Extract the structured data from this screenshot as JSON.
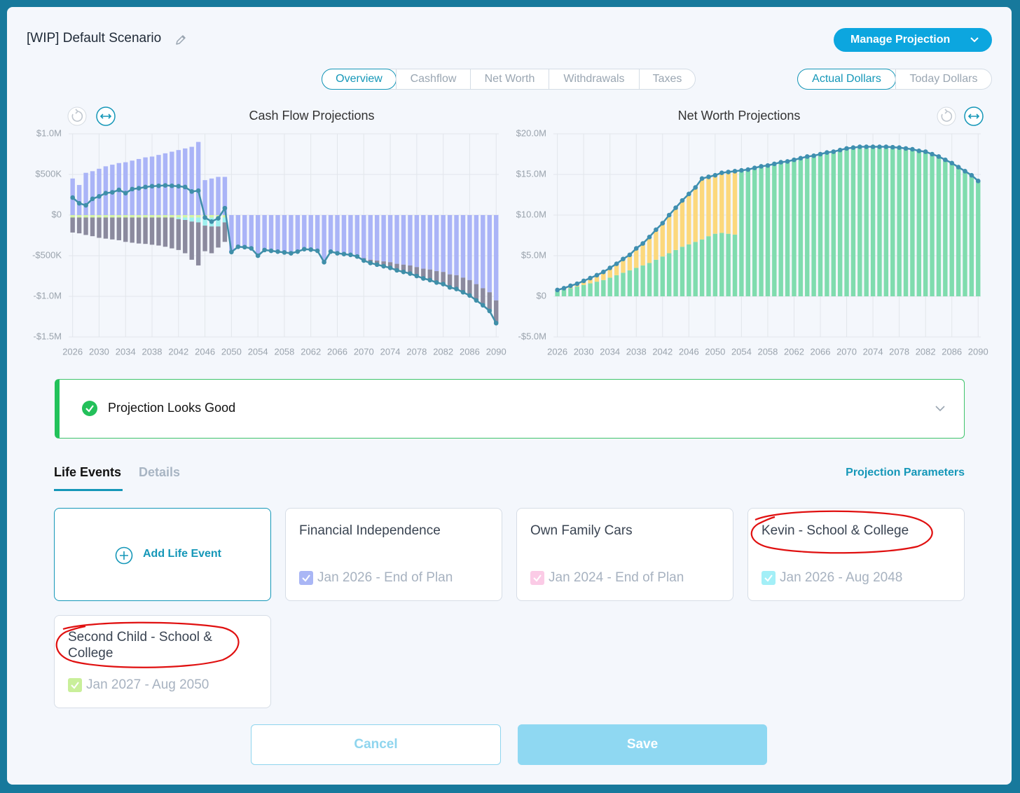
{
  "header": {
    "title": "[WIP] Default Scenario",
    "button": "Manage Projection"
  },
  "view_tabs": [
    "Overview",
    "Cashflow",
    "Net Worth",
    "Withdrawals",
    "Taxes"
  ],
  "dollar_toggle": [
    "Actual Dollars",
    "Today Dollars"
  ],
  "chart_data": [
    {
      "type": "bar",
      "stacked": true,
      "title": "Cash Flow Projections",
      "x": [
        2026,
        2027,
        2028,
        2029,
        2030,
        2031,
        2032,
        2033,
        2034,
        2035,
        2036,
        2037,
        2038,
        2039,
        2040,
        2041,
        2042,
        2043,
        2044,
        2045,
        2046,
        2047,
        2048,
        2049,
        2050,
        2051,
        2052,
        2053,
        2054,
        2055,
        2056,
        2057,
        2058,
        2059,
        2060,
        2061,
        2062,
        2063,
        2064,
        2065,
        2066,
        2067,
        2068,
        2069,
        2070,
        2071,
        2072,
        2073,
        2074,
        2075,
        2076,
        2077,
        2078,
        2079,
        2080,
        2081,
        2082,
        2083,
        2084,
        2085,
        2086,
        2087,
        2088,
        2089,
        2090
      ],
      "xlim": [
        2025.4,
        2090.4
      ],
      "xticks": [
        2026,
        2030,
        2034,
        2038,
        2042,
        2046,
        2050,
        2054,
        2058,
        2062,
        2066,
        2070,
        2074,
        2078,
        2082,
        2086,
        2090
      ],
      "ylim": [
        -1500000,
        1000000
      ],
      "yticks": [
        {
          "value": 1000000,
          "label": "$1.0M"
        },
        {
          "value": 500000,
          "label": "$500K"
        },
        {
          "value": 0,
          "label": "$0"
        },
        {
          "value": -500000,
          "label": "-$500K"
        },
        {
          "value": -1000000,
          "label": "-$1.0M"
        },
        {
          "value": -1500000,
          "label": "-$1.5M"
        }
      ],
      "grid": true,
      "series": [
        {
          "type": "bar",
          "color": "#aab4f7",
          "values": [
            450000,
            370000,
            520000,
            540000,
            570000,
            600000,
            620000,
            640000,
            650000,
            670000,
            690000,
            710000,
            720000,
            740000,
            760000,
            780000,
            800000,
            820000,
            840000,
            900000,
            430000,
            450000,
            470000,
            470000,
            -455000,
            -390000,
            -395000,
            -410000,
            -500000,
            -430000,
            -440000,
            -450000,
            -460000,
            -470000,
            -450000,
            -420000,
            -425000,
            -440000,
            -580000,
            -450000,
            -470000,
            -480000,
            -480000,
            -490000,
            -530000,
            -550000,
            -560000,
            -570000,
            -580000,
            -600000,
            -610000,
            -620000,
            -640000,
            -660000,
            -670000,
            -690000,
            -700000,
            -730000,
            -740000,
            -770000,
            -800000,
            -850000,
            -900000,
            -950000,
            -1050000
          ]
        },
        {
          "type": "bar",
          "color": "#d3f3a4",
          "values": [
            -30000,
            -30000,
            -30000,
            -30000,
            -30000,
            -30000,
            -30000,
            -30000,
            -30000,
            -30000,
            -30000,
            -30000,
            -30000,
            -30000,
            -30000,
            -30000,
            -30000,
            -30000,
            -30000,
            -30000,
            -30000,
            -30000,
            -30000,
            -30000,
            null,
            null,
            null,
            null,
            null,
            null,
            null,
            null,
            null,
            null,
            null,
            null,
            null,
            null,
            null,
            null,
            null,
            null,
            null,
            null,
            null,
            null,
            null,
            null,
            null,
            null,
            null,
            null,
            null,
            null,
            null,
            null,
            null,
            null,
            null,
            null,
            null,
            null,
            null,
            null,
            null
          ]
        },
        {
          "type": "bar",
          "color": "#9ef0ef",
          "values": [
            null,
            null,
            null,
            null,
            null,
            null,
            null,
            null,
            null,
            null,
            null,
            null,
            null,
            null,
            null,
            null,
            -20000,
            -30000,
            -50000,
            -60000,
            -100000,
            -110000,
            -110000,
            -60000,
            null,
            null,
            null,
            null,
            null,
            null,
            null,
            null,
            null,
            null,
            null,
            null,
            null,
            null,
            null,
            null,
            null,
            null,
            null,
            null,
            null,
            null,
            null,
            null,
            null,
            null,
            null,
            null,
            null,
            null,
            null,
            null,
            null,
            null,
            null,
            null,
            null,
            null,
            null,
            null,
            null
          ]
        },
        {
          "type": "bar",
          "color": "#8b8a9e",
          "values": [
            -185000,
            -195000,
            -215000,
            -230000,
            -250000,
            -260000,
            -270000,
            -280000,
            -300000,
            -310000,
            -320000,
            -325000,
            -335000,
            -345000,
            -360000,
            -380000,
            -380000,
            -410000,
            -470000,
            -530000,
            -315000,
            -330000,
            -260000,
            -240000,
            null,
            null,
            null,
            null,
            null,
            null,
            null,
            null,
            null,
            null,
            null,
            null,
            null,
            null,
            null,
            null,
            null,
            null,
            -10000,
            -20000,
            -30000,
            -40000,
            -50000,
            -60000,
            -70000,
            -80000,
            -90000,
            -100000,
            -110000,
            -120000,
            -130000,
            -140000,
            -150000,
            -160000,
            -170000,
            -180000,
            -190000,
            -200000,
            -210000,
            -230000,
            -280000
          ]
        },
        {
          "type": "line",
          "color": "#3f8fa9",
          "values": [
            215000,
            145000,
            120000,
            200000,
            230000,
            270000,
            280000,
            310000,
            270000,
            320000,
            330000,
            345000,
            355000,
            360000,
            365000,
            360000,
            355000,
            345000,
            290000,
            300000,
            -30000,
            -80000,
            -40000,
            85000,
            -455000,
            -390000,
            -395000,
            -410000,
            -500000,
            -430000,
            -440000,
            -450000,
            -460000,
            -470000,
            -450000,
            -420000,
            -425000,
            -440000,
            -580000,
            -450000,
            -470000,
            -480000,
            -490000,
            -510000,
            -560000,
            -590000,
            -610000,
            -630000,
            -650000,
            -680000,
            -700000,
            -720000,
            -750000,
            -780000,
            -800000,
            -830000,
            -850000,
            -890000,
            -910000,
            -950000,
            -990000,
            -1050000,
            -1110000,
            -1180000,
            -1330000
          ]
        }
      ]
    },
    {
      "type": "bar",
      "stacked": true,
      "title": "Net Worth Projections",
      "x": [
        2026,
        2027,
        2028,
        2029,
        2030,
        2031,
        2032,
        2033,
        2034,
        2035,
        2036,
        2037,
        2038,
        2039,
        2040,
        2041,
        2042,
        2043,
        2044,
        2045,
        2046,
        2047,
        2048,
        2049,
        2050,
        2051,
        2052,
        2053,
        2054,
        2055,
        2056,
        2057,
        2058,
        2059,
        2060,
        2061,
        2062,
        2063,
        2064,
        2065,
        2066,
        2067,
        2068,
        2069,
        2070,
        2071,
        2072,
        2073,
        2074,
        2075,
        2076,
        2077,
        2078,
        2079,
        2080,
        2081,
        2082,
        2083,
        2084,
        2085,
        2086,
        2087,
        2088,
        2089,
        2090
      ],
      "xlim": [
        2025.4,
        2090.4
      ],
      "xticks": [
        2026,
        2030,
        2034,
        2038,
        2042,
        2046,
        2050,
        2054,
        2058,
        2062,
        2066,
        2070,
        2074,
        2078,
        2082,
        2086,
        2090
      ],
      "ylim": [
        -5000000,
        20000000
      ],
      "yticks": [
        {
          "value": 20000000,
          "label": "$20.0M"
        },
        {
          "value": 15000000,
          "label": "$15.0M"
        },
        {
          "value": 10000000,
          "label": "$10.0M"
        },
        {
          "value": 5000000,
          "label": "$5.0M"
        },
        {
          "value": 0,
          "label": "$0"
        },
        {
          "value": -5000000,
          "label": "-$5.0M"
        }
      ],
      "grid": true,
      "series": [
        {
          "type": "bar",
          "color": "#7fdcae",
          "values": [
            600000,
            800000,
            1000000,
            1200000,
            1400000,
            1600000,
            1800000,
            2000000,
            2300000,
            2600000,
            2900000,
            3200000,
            3500000,
            3800000,
            4100000,
            4500000,
            4900000,
            5300000,
            5700000,
            6100000,
            6400000,
            6700000,
            7000000,
            7400000,
            7700000,
            7800000,
            7700000,
            7600000,
            15500000,
            15600000,
            15800000,
            16000000,
            16100000,
            16300000,
            16500000,
            16600000,
            16800000,
            17000000,
            17200000,
            17300000,
            17500000,
            17700000,
            17800000,
            18000000,
            18200000,
            18300000,
            18400000,
            18400000,
            18400000,
            18400000,
            18400000,
            18350000,
            18300000,
            18200000,
            18100000,
            17900000,
            17800000,
            17500000,
            17200000,
            16800000,
            16400000,
            15900000,
            15400000,
            14900000,
            14200000
          ]
        },
        {
          "type": "bar",
          "color": "#fcd87c",
          "values": [
            180000,
            200000,
            300000,
            350000,
            500000,
            650000,
            800000,
            1000000,
            1200000,
            1400000,
            1700000,
            1900000,
            2400000,
            2700000,
            3200000,
            3700000,
            4100000,
            4700000,
            5200000,
            5700000,
            6200000,
            6700000,
            7500000,
            7300000,
            7200000,
            7400000,
            7600000,
            7800000,
            null,
            null,
            null,
            null,
            null,
            null,
            null,
            null,
            null,
            null,
            null,
            null,
            null,
            null,
            null,
            null,
            null,
            null,
            null,
            null,
            null,
            null,
            null,
            null,
            null,
            null,
            null,
            null,
            null,
            null,
            null,
            null,
            null,
            null,
            null,
            null,
            null
          ]
        },
        {
          "type": "line",
          "color": "#3f8fb0",
          "values": [
            780000,
            1000000,
            1300000,
            1550000,
            1900000,
            2250000,
            2600000,
            3000000,
            3500000,
            4000000,
            4600000,
            5100000,
            5900000,
            6500000,
            7300000,
            8200000,
            9000000,
            10000000,
            10900000,
            11800000,
            12600000,
            13400000,
            14500000,
            14700000,
            14900000,
            15200000,
            15300000,
            15400000,
            15500000,
            15600000,
            15800000,
            16000000,
            16100000,
            16300000,
            16500000,
            16600000,
            16800000,
            17000000,
            17200000,
            17300000,
            17500000,
            17700000,
            17800000,
            18000000,
            18200000,
            18300000,
            18400000,
            18400000,
            18400000,
            18400000,
            18400000,
            18350000,
            18300000,
            18200000,
            18100000,
            17900000,
            17800000,
            17500000,
            17200000,
            16800000,
            16400000,
            15900000,
            15400000,
            14900000,
            14200000
          ]
        }
      ]
    }
  ],
  "status": "Projection Looks Good",
  "section_tabs": [
    "Life Events",
    "Details"
  ],
  "parameters_link": "Projection Parameters",
  "add_event": "Add Life Event",
  "life_events": [
    {
      "title": "Financial Independence",
      "dates": "Jan 2026 - End of Plan",
      "color": "#a9b6f5"
    },
    {
      "title": "Own Family Cars",
      "dates": "Jan 2024 - End of Plan",
      "color": "#fbcbe6"
    },
    {
      "title": "Kevin - School & College",
      "dates": "Jan 2026 - Aug 2048",
      "color": "#a3eff7"
    },
    {
      "title": "Second Child - School & College",
      "dates": "Jan 2027 - Aug 2050",
      "color": "#c9ef9a"
    }
  ],
  "buttons": [
    "Cancel",
    "Save"
  ]
}
